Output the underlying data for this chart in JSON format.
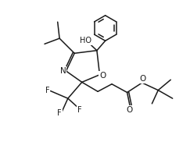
{
  "background_color": "#ffffff",
  "line_color": "#1a1a1a",
  "line_width": 1.1,
  "font_size": 7.0,
  "fig_width": 2.43,
  "fig_height": 1.82,
  "dpi": 100,
  "xlim": [
    0,
    10
  ],
  "ylim": [
    0,
    7.5
  ]
}
